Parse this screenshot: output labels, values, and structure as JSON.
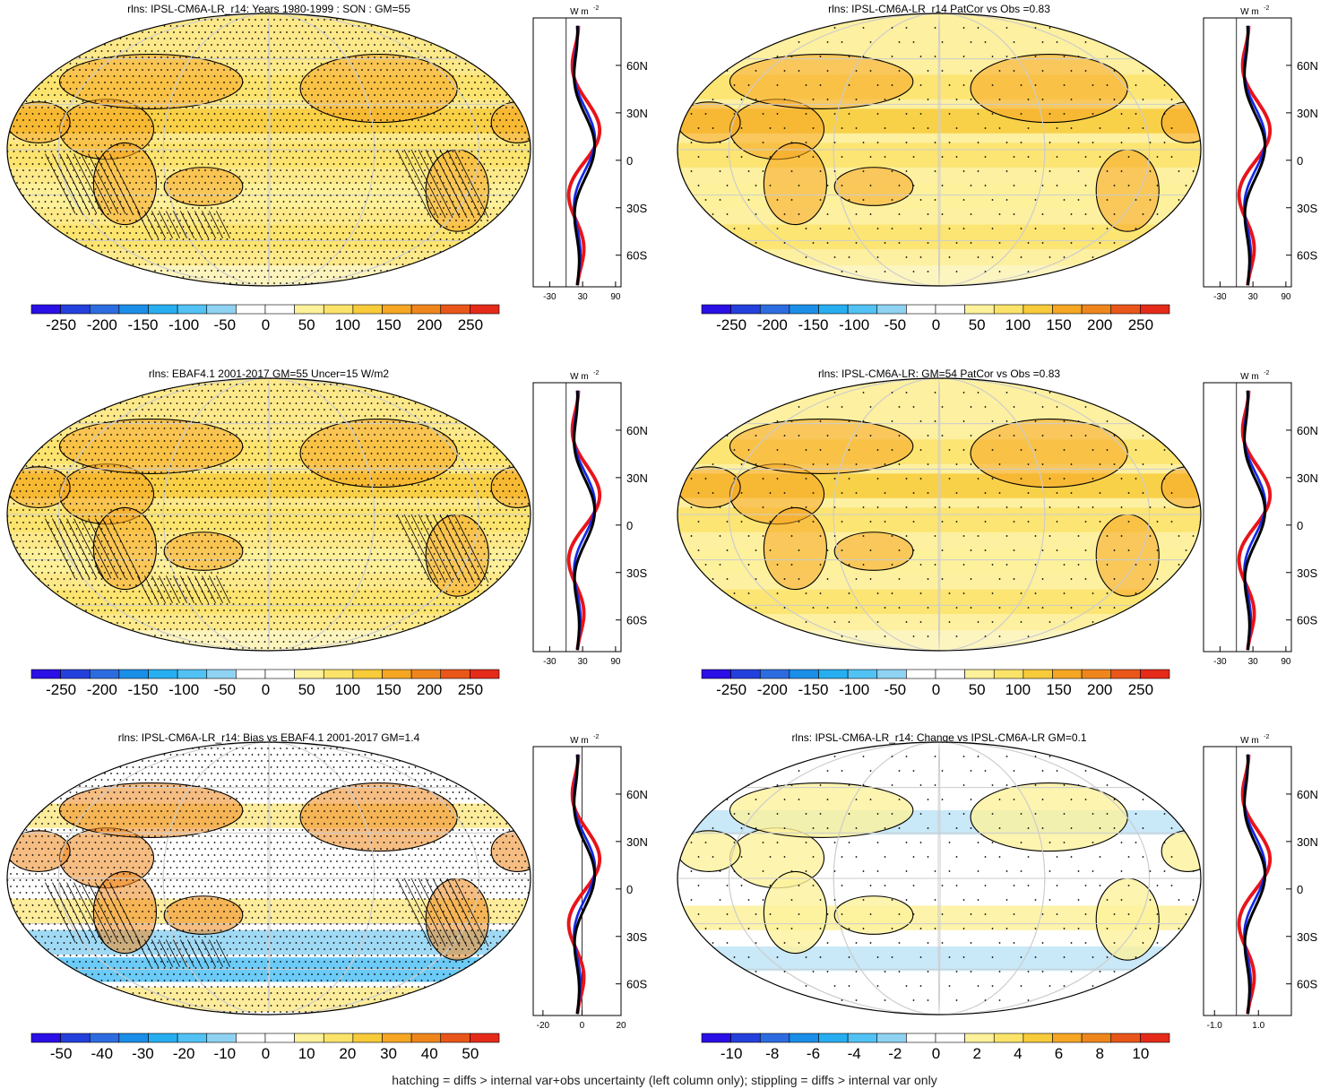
{
  "footer": "hatching = diffs > internal var+obs uncertainty (left column only); stippling = diffs > internal var only",
  "unit_label": "W m",
  "unit_sup": "-2",
  "lat_ticks": [
    "60N",
    "30N",
    "0",
    "30S",
    "60S"
  ],
  "colors": {
    "neg": [
      "#2a0fe6",
      "#2440dc",
      "#2d6ce0",
      "#1b8ee8",
      "#27aef0",
      "#52c2f5",
      "#8fd2f2"
    ],
    "neutral": "#ffffff",
    "pos": [
      "#fdf19b",
      "#fbe36a",
      "#f8cb3a",
      "#f5a623",
      "#ef861c",
      "#e9561a",
      "#e62a1a",
      "#c8151b"
    ],
    "line_red": "#e8141a",
    "line_blue": "#1428e6",
    "line_black": "#000000"
  },
  "chart_data": [
    {
      "type": "heatmap",
      "title": "rlns: IPSL-CM6A-LR_r14: Years 1980-1999 : SON : GM=55",
      "colorbar_labels": [
        "-250",
        "-200",
        "-150",
        "-100",
        "-50",
        "0",
        "50",
        "100",
        "150",
        "200",
        "250"
      ],
      "hatched": true,
      "stippled": true,
      "style": "abs",
      "zonal_xticks": [
        "-30",
        "30",
        "90"
      ],
      "zonal_xlim": [
        -60,
        100
      ]
    },
    {
      "type": "heatmap",
      "title": "rlns: IPSL-CM6A-LR_r14 PatCor vs Obs =0.83",
      "colorbar_labels": [
        "-250",
        "-200",
        "-150",
        "-100",
        "-50",
        "0",
        "50",
        "100",
        "150",
        "200",
        "250"
      ],
      "hatched": false,
      "stippled": true,
      "style": "abs_light",
      "zonal_xticks": [
        "-30",
        "30",
        "90"
      ],
      "zonal_xlim": [
        -60,
        100
      ]
    },
    {
      "type": "heatmap",
      "title": "rlns: EBAF4.1 2001-2017 GM=55 Uncer=15 W/m2",
      "colorbar_labels": [
        "-250",
        "-200",
        "-150",
        "-100",
        "-50",
        "0",
        "50",
        "100",
        "150",
        "200",
        "250"
      ],
      "hatched": true,
      "stippled": true,
      "style": "abs",
      "zonal_xticks": [
        "-30",
        "30",
        "90"
      ],
      "zonal_xlim": [
        -60,
        100
      ]
    },
    {
      "type": "heatmap",
      "title": "rlns: IPSL-CM6A-LR: GM=54 PatCor vs Obs =0.83",
      "colorbar_labels": [
        "-250",
        "-200",
        "-150",
        "-100",
        "-50",
        "0",
        "50",
        "100",
        "150",
        "200",
        "250"
      ],
      "hatched": false,
      "stippled": true,
      "style": "abs_light",
      "zonal_xticks": [
        "-30",
        "30",
        "90"
      ],
      "zonal_xlim": [
        -60,
        100
      ]
    },
    {
      "type": "heatmap",
      "title": "rlns: IPSL-CM6A-LR_r14: Bias vs EBAF4.1 2001-2017  GM=1.4",
      "colorbar_labels": [
        "-50",
        "-40",
        "-30",
        "-20",
        "-10",
        "0",
        "10",
        "20",
        "30",
        "40",
        "50"
      ],
      "hatched": true,
      "stippled": true,
      "style": "bias",
      "zonal_xticks": [
        "-20",
        "0",
        "20"
      ],
      "zonal_xlim": [
        -25,
        20
      ]
    },
    {
      "type": "heatmap",
      "title": "rlns: IPSL-CM6A-LR_r14: Change vs IPSL-CM6A-LR GM=0.1",
      "colorbar_labels": [
        "-10",
        "-8",
        "-6",
        "-4",
        "-2",
        "0",
        "2",
        "4",
        "6",
        "8",
        "10"
      ],
      "hatched": false,
      "stippled": true,
      "style": "change",
      "zonal_xticks": [
        "-1.0",
        "1.0"
      ],
      "zonal_xlim": [
        -1.5,
        2.5
      ]
    }
  ]
}
